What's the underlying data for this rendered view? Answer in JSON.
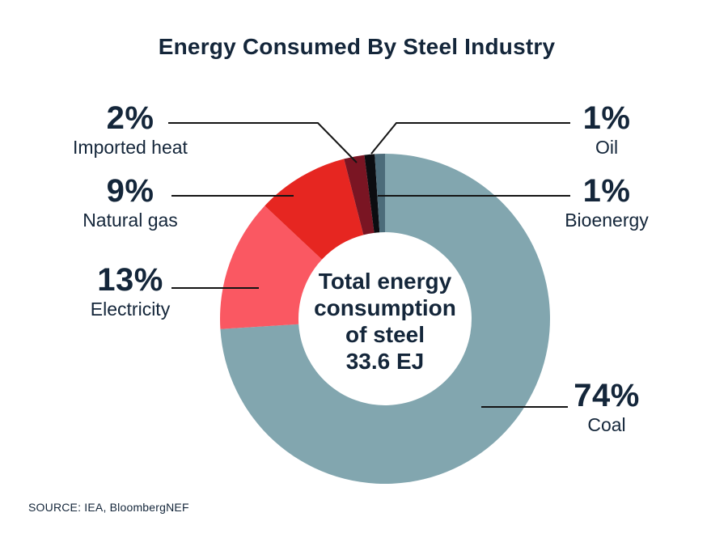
{
  "title": "Energy Consumed By Steel Industry",
  "source": "SOURCE: IEA, BloombergNEF",
  "center": {
    "lines": [
      "Total energy",
      "consumption",
      "of steel",
      "33.6 EJ"
    ]
  },
  "colors": {
    "text_navy": "#14263a",
    "leader_line": "#141414",
    "background": "#ffffff"
  },
  "labels": {
    "imported_heat": {
      "pct": "2%",
      "name": "Imported heat"
    },
    "natural_gas": {
      "pct": "9%",
      "name": "Natural gas"
    },
    "electricity": {
      "pct": "13%",
      "name": "Electricity"
    },
    "oil": {
      "pct": "1%",
      "name": "Oil"
    },
    "bioenergy": {
      "pct": "1%",
      "name": "Bioenergy"
    },
    "coal": {
      "pct": "74%",
      "name": "Coal"
    }
  },
  "chart_data": {
    "type": "pie",
    "subtype": "donut",
    "title": "Energy Consumed By Steel Industry",
    "center_label": "Total energy consumption of steel 33.6 EJ",
    "total_value": 33.6,
    "total_unit": "EJ",
    "start_angle_deg": 0,
    "direction": "clockwise",
    "legend_position": "leader-line callouts",
    "segments": [
      {
        "label": "Coal",
        "pct": 74,
        "color": "#82a6af"
      },
      {
        "label": "Electricity",
        "pct": 13,
        "color": "#fa5862"
      },
      {
        "label": "Natural gas",
        "pct": 9,
        "color": "#e62621"
      },
      {
        "label": "Imported heat",
        "pct": 2,
        "color": "#7a1523"
      },
      {
        "label": "Oil",
        "pct": 1,
        "color": "#0c0d11"
      },
      {
        "label": "Bioenergy",
        "pct": 1,
        "color": "#4c6c7a"
      }
    ]
  }
}
